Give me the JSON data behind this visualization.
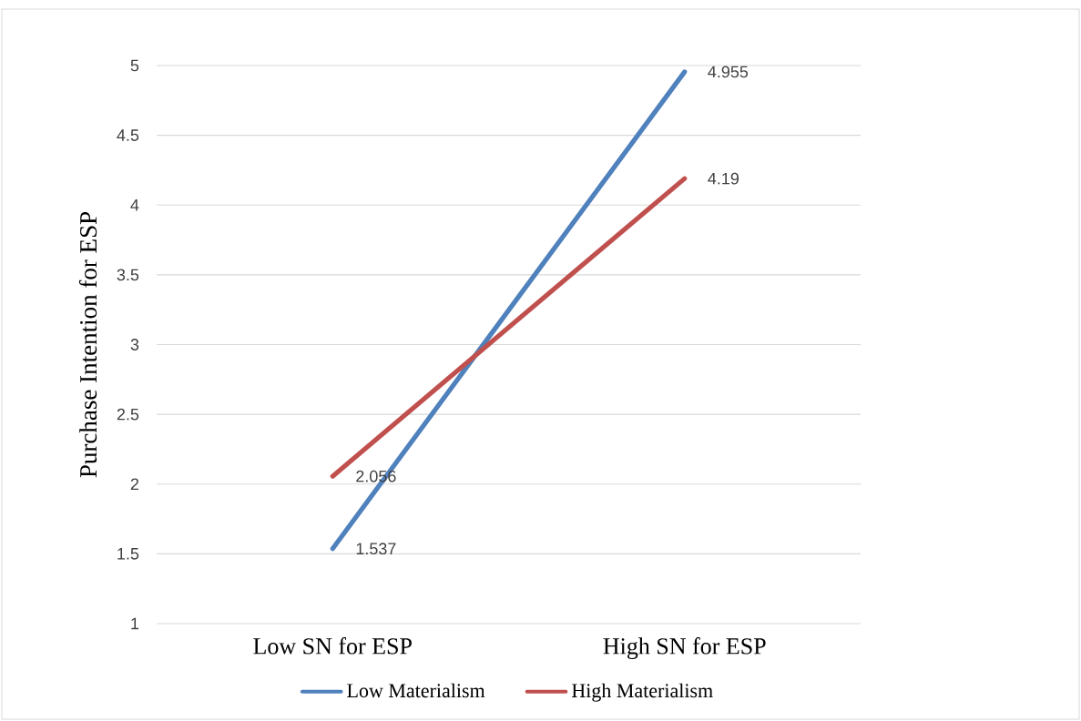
{
  "chart_data": {
    "type": "line",
    "ylabel": "Purchase Intention for ESP",
    "categories": [
      "Low SN for ESP",
      "High SN for ESP"
    ],
    "series": [
      {
        "name": "Low Materialism",
        "color": "#4f81bd",
        "values": [
          1.537,
          4.955
        ]
      },
      {
        "name": "High Materialism",
        "color": "#c0504d",
        "values": [
          2.056,
          4.19
        ]
      }
    ],
    "ylim": [
      1,
      5
    ],
    "yticks": [
      1,
      1.5,
      2,
      2.5,
      3,
      3.5,
      4,
      4.5,
      5
    ],
    "grid": "y",
    "legend": "bottom",
    "data_labels": true,
    "marker": "none",
    "line_style": "solid"
  }
}
